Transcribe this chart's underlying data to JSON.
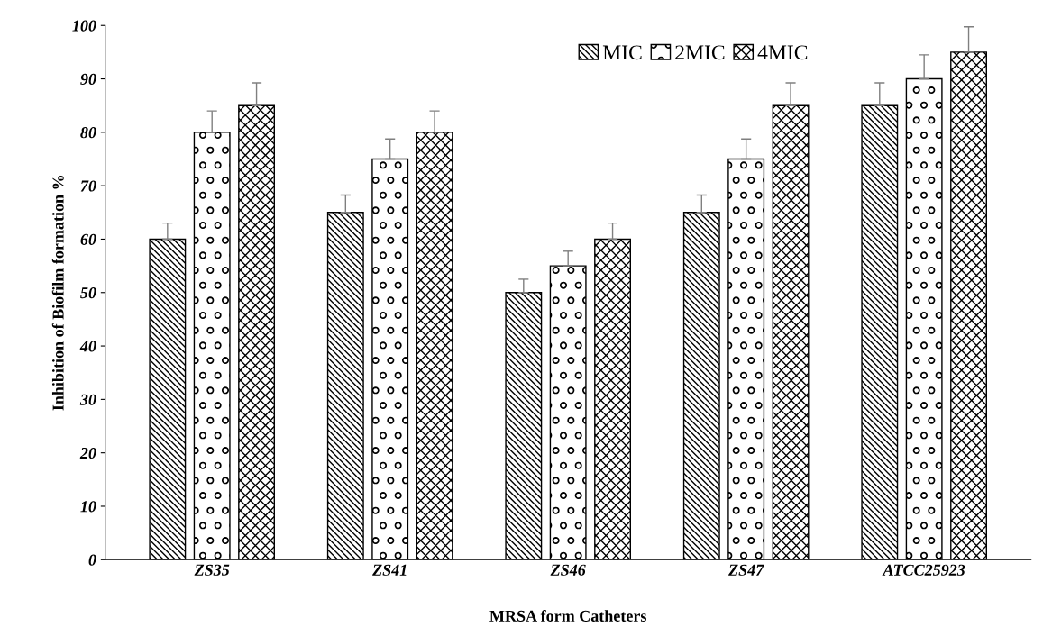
{
  "chart_data": {
    "type": "bar",
    "xlabel": "MRSA form Catheters",
    "ylabel": "Inhibition of Biofilm formation %",
    "categories": [
      "ZS35",
      "ZS41",
      "ZS46",
      "ZS47",
      "ATCC25923"
    ],
    "series": [
      {
        "name": "MIC",
        "color": "#000000",
        "values": [
          60,
          65,
          50,
          65,
          85
        ],
        "errors": [
          3,
          3.25,
          2.5,
          3.25,
          4.25
        ]
      },
      {
        "name": "2MIC",
        "color": "#000000",
        "values": [
          80,
          75,
          55,
          75,
          90
        ],
        "errors": [
          4,
          3.75,
          2.75,
          3.75,
          4.5
        ]
      },
      {
        "name": "4MIC",
        "color": "#000000",
        "values": [
          85,
          80,
          60,
          85,
          95
        ],
        "errors": [
          4.25,
          4,
          3,
          4.25,
          4.75
        ]
      }
    ],
    "ylim": [
      0,
      100
    ],
    "yticks": [
      0,
      10,
      20,
      30,
      40,
      50,
      60,
      70,
      80,
      90,
      100
    ],
    "grid": false,
    "legend": "top right"
  }
}
